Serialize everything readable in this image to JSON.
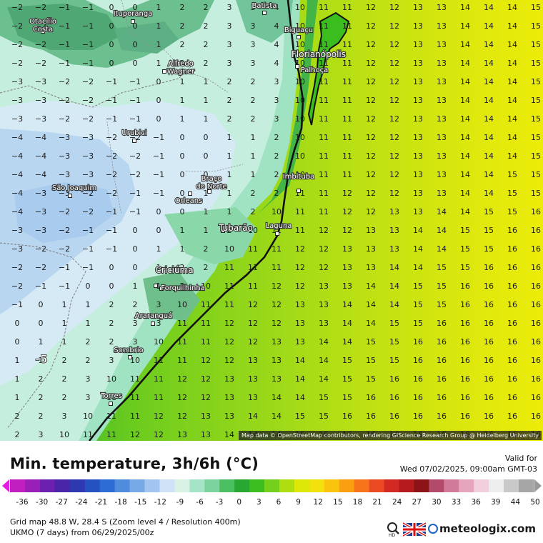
{
  "map": {
    "attribution": "Map data © OpenStreetMap contributors, rendering GIScience Research Group @ Heidelberg University",
    "places": [
      {
        "name": "Ituporanga",
        "id": "itu"
      },
      {
        "name": "Batista",
        "id": "bat"
      },
      {
        "name": "Otacílio Costa",
        "id": "ota"
      },
      {
        "name": "Biguaçu",
        "id": "big"
      },
      {
        "name": "Florianópolis",
        "id": "flo"
      },
      {
        "name": "Palhoça",
        "id": "pal"
      },
      {
        "name": "Alfredo Wagner",
        "id": "alf"
      },
      {
        "name": "Urubici",
        "id": "uru"
      },
      {
        "name": "Braço do Norte",
        "id": "bra"
      },
      {
        "name": "Imbituba",
        "id": "imb"
      },
      {
        "name": "São Joaquim",
        "id": "sjo"
      },
      {
        "name": "Orleans",
        "id": "orl"
      },
      {
        "name": "Tubarão",
        "id": "tub"
      },
      {
        "name": "Laguna",
        "id": "lag"
      },
      {
        "name": "Criciúma",
        "id": "cri"
      },
      {
        "name": "Forquilhinha",
        "id": "for"
      },
      {
        "name": "Araranguá",
        "id": "ara"
      },
      {
        "name": "Sombrio",
        "id": "som"
      },
      {
        "name": "Torres",
        "id": "tor"
      }
    ],
    "highlight_value": "-5"
  },
  "legend": {
    "title": "Min. temperature, 3h/6h (°C)",
    "valid_label": "Valid for",
    "valid_time": "Wed 07/02/2025, 09:00am GMT-03",
    "ticks": [
      "-36",
      "-30",
      "-27",
      "-24",
      "-21",
      "-18",
      "-15",
      "-12",
      "-9",
      "-6",
      "-3",
      "0",
      "3",
      "6",
      "9",
      "12",
      "15",
      "18",
      "21",
      "24",
      "27",
      "30",
      "33",
      "36",
      "39",
      "44",
      "50"
    ],
    "colors": [
      "#c020c0",
      "#9a1fb8",
      "#6d1fae",
      "#4a25a8",
      "#2e38b0",
      "#2452c0",
      "#2d6cd2",
      "#4f8cdc",
      "#76a9e6",
      "#a2c5ef",
      "#cfe1f6",
      "#d8f3e5",
      "#a6e4c8",
      "#7cd39e",
      "#4cbf63",
      "#28a830",
      "#3cbd1e",
      "#74d01a",
      "#aede10",
      "#dde808",
      "#f2e10c",
      "#f9c30e",
      "#fb9e10",
      "#f8741a",
      "#ec4a24",
      "#d22a22",
      "#b51a1f",
      "#8c1418",
      "#b34a6a",
      "#d27a99",
      "#e7a5bd",
      "#f2cfdc",
      "#eeeeee",
      "#c9c9c9",
      "#a6a6a6"
    ],
    "info_line1": "Grid map 48.8 W, 28.4 S (Zoom level 4 / Resolution 400m)",
    "info_line2": "UKMO (7 days) from  06/29/2025/00z",
    "brand": "meteologix.com"
  }
}
